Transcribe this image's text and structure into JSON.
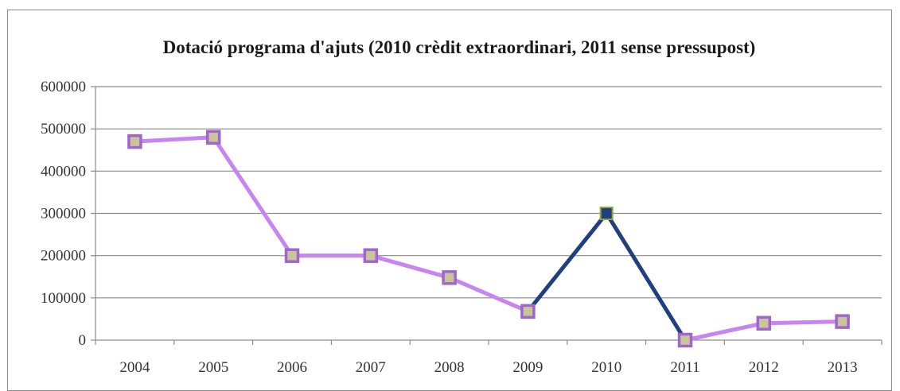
{
  "chart_data": {
    "type": "line",
    "title": "Dotació programa d'ajuts (2010 crèdit extraordinari, 2011 sense pressupost)",
    "xlabel": "",
    "ylabel": "",
    "categories": [
      "2004",
      "2005",
      "2006",
      "2007",
      "2008",
      "2009",
      "2010",
      "2011",
      "2012",
      "2013"
    ],
    "values": [
      470000,
      480000,
      200000,
      200000,
      148000,
      68000,
      300000,
      0,
      40000,
      44000
    ],
    "ylim": [
      0,
      600000
    ],
    "yticks": [
      0,
      100000,
      200000,
      300000,
      400000,
      500000,
      600000
    ],
    "ytick_labels": [
      "0",
      "100000",
      "200000",
      "300000",
      "400000",
      "500000",
      "600000"
    ],
    "grid": true,
    "legend": "none",
    "highlight_segment": [
      "2009",
      "2011"
    ],
    "colors": {
      "line": "#c685f0",
      "highlight_line": "#1f3f80",
      "marker_fill": "#c9c59a",
      "marker_edge": "#a066cc",
      "highlight_marker_fill": "#1f3f80",
      "highlight_marker_edge": "#8fa830",
      "gridline": "#8c8c8c"
    }
  }
}
